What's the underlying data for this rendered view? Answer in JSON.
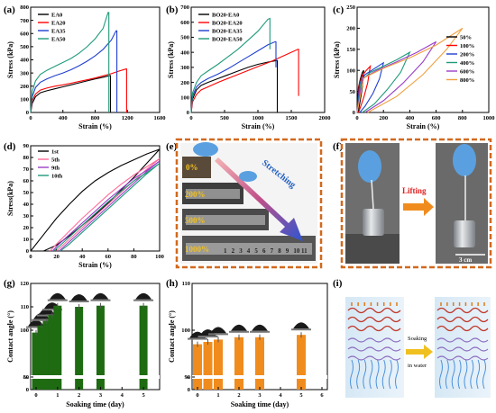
{
  "panels": {
    "a": {
      "label": "(a)"
    },
    "b": {
      "label": "(b)"
    },
    "c": {
      "label": "(c)"
    },
    "d": {
      "label": "(d)"
    },
    "e": {
      "label": "(e)",
      "arrow_text": "Stretching",
      "strain_labels": [
        "0%",
        "200%",
        "500%",
        "1000%"
      ],
      "ruler_digits": [
        "1",
        "2",
        "3",
        "4",
        "5",
        "6",
        "7",
        "8",
        "9",
        "10",
        "11"
      ]
    },
    "f": {
      "label": "(f)",
      "arrow_text": "Lifting",
      "scale_text": "3 cm"
    },
    "g": {
      "label": "(g)"
    },
    "h": {
      "label": "(h)"
    },
    "i": {
      "label": "(i)",
      "arrow_text_1": "Soaking",
      "arrow_text_2": "in water"
    }
  },
  "chart_data": [
    {
      "id": "a",
      "type": "line",
      "xlabel": "Strain (%)",
      "ylabel": "Stress (kPa)",
      "xlim": [
        0,
        1600
      ],
      "ylim": [
        0,
        800
      ],
      "xticks": [
        "0",
        "400",
        "800",
        "1200",
        "1600"
      ],
      "yticks": [
        "0",
        "100",
        "200",
        "300",
        "400",
        "500",
        "600",
        "700",
        "800"
      ],
      "legend_position": "top-left",
      "series": [
        {
          "name": "EA0",
          "color": "#000000",
          "x": [
            0,
            20,
            60,
            120,
            200,
            300,
            400,
            500,
            600,
            700,
            800,
            900,
            980,
            990,
            990
          ],
          "y": [
            0,
            70,
            120,
            150,
            165,
            180,
            195,
            210,
            225,
            240,
            255,
            268,
            280,
            280,
            0
          ]
        },
        {
          "name": "EA20",
          "color": "#ff0000",
          "x": [
            0,
            20,
            60,
            120,
            200,
            300,
            400,
            500,
            600,
            700,
            800,
            900,
            1000,
            1100,
            1180,
            1190,
            1190
          ],
          "y": [
            0,
            90,
            140,
            170,
            185,
            200,
            210,
            222,
            235,
            248,
            262,
            278,
            295,
            315,
            330,
            330,
            0
          ]
        },
        {
          "name": "EA35",
          "color": "#1f3fd0",
          "x": [
            0,
            20,
            60,
            120,
            200,
            300,
            400,
            500,
            600,
            700,
            800,
            900,
            1000,
            1060,
            1070,
            1070
          ],
          "y": [
            0,
            120,
            190,
            230,
            255,
            280,
            300,
            325,
            355,
            390,
            430,
            480,
            550,
            620,
            620,
            0
          ]
        },
        {
          "name": "EA50",
          "color": "#1f9a7a",
          "x": [
            0,
            20,
            60,
            120,
            200,
            300,
            400,
            500,
            600,
            700,
            800,
            900,
            960,
            970,
            970
          ],
          "y": [
            0,
            160,
            240,
            290,
            320,
            350,
            380,
            410,
            450,
            500,
            560,
            640,
            760,
            760,
            0
          ]
        }
      ]
    },
    {
      "id": "b",
      "type": "line",
      "xlabel": "Strain (%)",
      "ylabel": "Stress (kPa)",
      "xlim": [
        0,
        2000
      ],
      "ylim": [
        0,
        700
      ],
      "xticks": [
        "0",
        "500",
        "1000",
        "1500",
        "2000"
      ],
      "yticks": [
        "0",
        "100",
        "200",
        "300",
        "400",
        "500",
        "600",
        "700"
      ],
      "legend_position": "top-left",
      "series": [
        {
          "name": "BO20-EA0",
          "color": "#000000",
          "x": [
            0,
            20,
            80,
            150,
            250,
            400,
            550,
            700,
            850,
            1000,
            1150,
            1280,
            1290,
            1290
          ],
          "y": [
            0,
            90,
            150,
            180,
            200,
            225,
            250,
            275,
            300,
            320,
            335,
            345,
            345,
            0
          ]
        },
        {
          "name": "BO20-EA20",
          "color": "#ff0000",
          "x": [
            0,
            20,
            80,
            150,
            250,
            400,
            600,
            800,
            1000,
            1200,
            1400,
            1600,
            1610,
            1610
          ],
          "y": [
            0,
            70,
            120,
            150,
            170,
            200,
            235,
            270,
            305,
            340,
            380,
            420,
            420,
            110
          ]
        },
        {
          "name": "BO20-EA35",
          "color": "#1f3fd0",
          "x": [
            0,
            20,
            80,
            150,
            250,
            400,
            550,
            700,
            850,
            1000,
            1150,
            1260,
            1270,
            1270
          ],
          "y": [
            0,
            110,
            170,
            200,
            225,
            255,
            290,
            330,
            370,
            410,
            450,
            470,
            470,
            300
          ]
        },
        {
          "name": "BO20-EA50",
          "color": "#1f9a7a",
          "x": [
            0,
            20,
            80,
            150,
            250,
            400,
            550,
            700,
            850,
            1000,
            1150,
            1180,
            1180
          ],
          "y": [
            0,
            130,
            200,
            245,
            275,
            320,
            370,
            420,
            480,
            540,
            620,
            625,
            420
          ]
        }
      ]
    },
    {
      "id": "c",
      "type": "line",
      "xlabel": "Strain (%)",
      "ylabel": "Stress (kPa)",
      "xlim": [
        0,
        1000
      ],
      "ylim": [
        0,
        250
      ],
      "xticks": [
        "0",
        "200",
        "400",
        "600",
        "800",
        "1000"
      ],
      "yticks": [
        "0",
        "50",
        "100",
        "150",
        "200",
        "250"
      ],
      "legend_position": "right",
      "series": [
        {
          "name": "50%",
          "color": "#000000",
          "x": [
            0,
            10,
            25,
            40,
            50,
            40,
            25,
            10,
            5
          ],
          "y": [
            0,
            60,
            80,
            95,
            100,
            60,
            30,
            5,
            0
          ]
        },
        {
          "name": "100%",
          "color": "#ff0000",
          "x": [
            0,
            15,
            40,
            70,
            100,
            80,
            50,
            20,
            10
          ],
          "y": [
            0,
            65,
            88,
            100,
            110,
            70,
            35,
            8,
            0
          ]
        },
        {
          "name": "200%",
          "color": "#1f3fd0",
          "x": [
            0,
            20,
            60,
            120,
            170,
            200,
            170,
            120,
            60,
            20
          ],
          "y": [
            0,
            70,
            90,
            102,
            112,
            118,
            80,
            45,
            15,
            0
          ]
        },
        {
          "name": "400%",
          "color": "#1f9a7a",
          "x": [
            0,
            30,
            100,
            200,
            300,
            400,
            330,
            230,
            130,
            40
          ],
          "y": [
            0,
            75,
            95,
            110,
            125,
            143,
            95,
            55,
            20,
            0
          ]
        },
        {
          "name": "600%",
          "color": "#9b3dc8",
          "x": [
            0,
            40,
            150,
            300,
            450,
            600,
            500,
            350,
            200,
            60
          ],
          "y": [
            0,
            80,
            100,
            120,
            142,
            168,
            120,
            70,
            28,
            0
          ]
        },
        {
          "name": "800%",
          "color": "#f0a040",
          "x": [
            0,
            50,
            200,
            400,
            600,
            800,
            680,
            500,
            300,
            80
          ],
          "y": [
            0,
            82,
            105,
            130,
            160,
            200,
            150,
            90,
            38,
            0
          ]
        }
      ]
    },
    {
      "id": "d",
      "type": "line",
      "xlabel": "Strain (%)",
      "ylabel": "Stress(kPa)",
      "xlim": [
        0,
        100
      ],
      "ylim": [
        0,
        90
      ],
      "xticks": [
        "0",
        "20",
        "40",
        "60",
        "80",
        "100"
      ],
      "yticks": [
        "0",
        "10",
        "20",
        "30",
        "40",
        "50",
        "60",
        "70",
        "80",
        "90"
      ],
      "legend_position": "top-left",
      "series": [
        {
          "name": "1st",
          "color": "#000000",
          "x": [
            0,
            10,
            20,
            30,
            40,
            50,
            60,
            70,
            80,
            90,
            100,
            90,
            80,
            70,
            60,
            50,
            40,
            30,
            20,
            10,
            5
          ],
          "y": [
            0,
            14,
            28,
            40,
            51,
            60,
            67,
            73,
            78,
            83,
            87,
            75,
            63,
            52,
            41,
            31,
            22,
            13,
            5,
            0,
            0
          ]
        },
        {
          "name": "5th",
          "color": "#ff6b9a",
          "x": [
            15,
            20,
            30,
            40,
            50,
            60,
            70,
            80,
            90,
            100,
            90,
            80,
            70,
            60,
            50,
            40,
            30,
            20
          ],
          "y": [
            0,
            6,
            17,
            28,
            38,
            48,
            57,
            65,
            72,
            79,
            70,
            60,
            50,
            40,
            30,
            20,
            10,
            0
          ]
        },
        {
          "name": "9th",
          "color": "#9b3dc8",
          "x": [
            17,
            22,
            30,
            40,
            50,
            60,
            70,
            80,
            90,
            100,
            90,
            80,
            70,
            60,
            50,
            40,
            30,
            22
          ],
          "y": [
            0,
            6,
            14,
            24,
            34,
            44,
            53,
            62,
            69,
            77,
            68,
            58,
            48,
            38,
            28,
            18,
            8,
            0
          ]
        },
        {
          "name": "10th",
          "color": "#1f9a7a",
          "x": [
            18,
            23,
            30,
            40,
            50,
            60,
            70,
            80,
            90,
            100,
            90,
            80,
            70,
            60,
            50,
            40,
            30,
            23
          ],
          "y": [
            0,
            5,
            12,
            22,
            32,
            42,
            51,
            60,
            67,
            75,
            66,
            56,
            46,
            36,
            26,
            16,
            6,
            0
          ]
        }
      ]
    },
    {
      "id": "g",
      "type": "bar",
      "xlabel": "Soaking time (day)",
      "ylabel": "Contact angle (°)",
      "xticks": [
        "0",
        "1",
        "2",
        "3",
        "4",
        "5"
      ],
      "yticks": [
        "0",
        "80",
        "100",
        "110",
        "120"
      ],
      "axis_break": [
        0,
        80
      ],
      "color": "#1e6b12",
      "x": [
        0,
        0.25,
        0.5,
        0.75,
        1,
        2,
        3,
        5
      ],
      "values": [
        99.0,
        102.0,
        104.0,
        106.5,
        110.5,
        110.0,
        110.5,
        110.5
      ]
    },
    {
      "id": "h",
      "type": "bar",
      "xlabel": "Soaking time (day)",
      "ylabel": "Contact angle (°)",
      "xticks": [
        "0",
        "1",
        "2",
        "3",
        "4",
        "5",
        "6"
      ],
      "yticks": [
        "0",
        "90",
        "100",
        "110"
      ],
      "axis_break": [
        0,
        90
      ],
      "color": "#f08c1e",
      "x": [
        0,
        0.5,
        1,
        2,
        3,
        5
      ],
      "values": [
        97.0,
        97.5,
        98.0,
        98.5,
        98.5,
        99.0
      ]
    }
  ]
}
